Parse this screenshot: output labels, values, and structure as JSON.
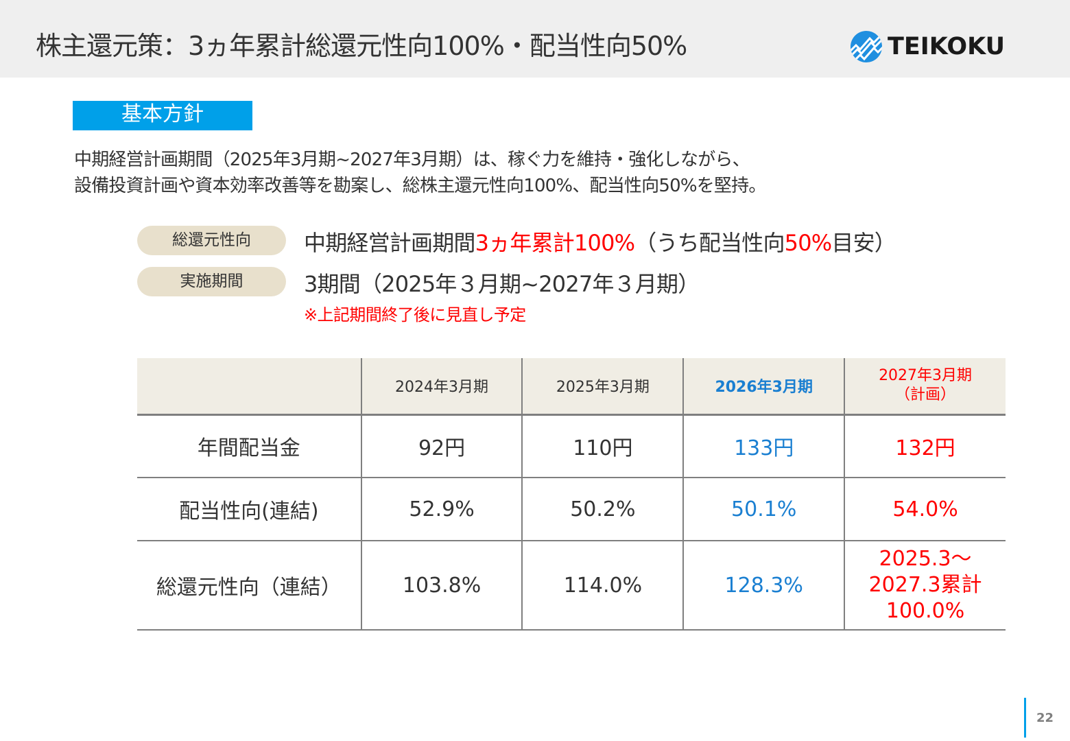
{
  "header": {
    "title": "株主還元策：3ヵ年累計総還元性向100%・配当性向50%",
    "logo_text": "TEIKOKU",
    "logo_icon": "teikoku-logo-mark"
  },
  "section_label": "基本方針",
  "intro": {
    "line1": "中期経営計画期間（2025年3月期~2027年3月期）は、稼ぐ力を維持・強化しながら、",
    "line2": "設備投資計画や資本効率改善等を勘案し、総株主還元性向100%、配当性向50%を堅持。"
  },
  "policy": {
    "items": [
      {
        "label": "総還元性向",
        "text_a": "中期経営計画期間",
        "text_b": "3ヵ年累計100%",
        "text_c": "（うち配当性向",
        "text_d": "50%",
        "text_e": "目安）"
      },
      {
        "label": "実施期間",
        "text_a": "3期間（2025年３月期~2027年３月期）"
      }
    ],
    "note": "※上記期間終了後に見直し予定"
  },
  "table": {
    "headers": [
      "",
      "2024年3月期",
      "2025年3月期",
      "2026年3月期",
      "2027年3月期",
      "（計画）"
    ],
    "rows": [
      {
        "label": "年間配当金",
        "cells": [
          "92円",
          "110円",
          "133円",
          "132円"
        ]
      },
      {
        "label": "配当性向(連結)",
        "cells": [
          "52.9%",
          "50.2%",
          "50.1%",
          "54.0%"
        ]
      },
      {
        "label": "総還元性向（連結）",
        "cells": [
          "103.8%",
          "114.0%",
          "128.3%"
        ],
        "last_lines": [
          "2025.3～",
          "2027.3累計",
          "100.0%"
        ]
      }
    ]
  },
  "colors": {
    "accent": "#00a0e9",
    "current_year": "#1a7fd1",
    "plan": "#ff0000",
    "pill_bg": "#e8e0cc",
    "table_header_bg": "#f0ede4"
  },
  "page_number": "22"
}
